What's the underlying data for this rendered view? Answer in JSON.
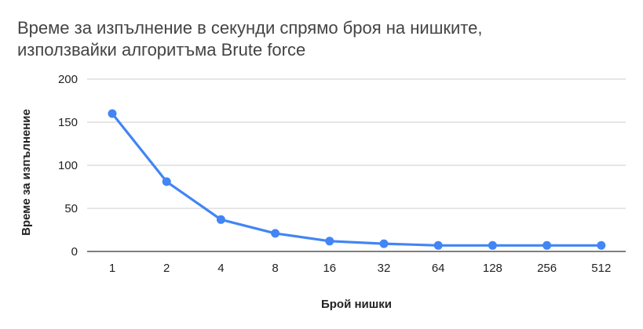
{
  "chart_data": {
    "type": "line",
    "title_lines": [
      "Време за изпълнение в секунди спрямо броя на нишките,",
      "използвайки алгоритъма Brute force"
    ],
    "xlabel": "Брой нишки",
    "ylabel": "Време за изпълнение",
    "categories": [
      "1",
      "2",
      "4",
      "8",
      "16",
      "32",
      "64",
      "128",
      "256",
      "512"
    ],
    "series": [
      {
        "values": [
          160,
          81,
          37,
          21,
          12,
          9,
          7,
          7,
          7,
          7
        ]
      }
    ],
    "ylim": [
      0,
      200
    ],
    "yticks": [
      0,
      50,
      100,
      150,
      200
    ],
    "grid": true,
    "legend": "none",
    "colors": {
      "line": "#4285f4",
      "grid": "#cccccc",
      "baseline": "#333333"
    }
  }
}
